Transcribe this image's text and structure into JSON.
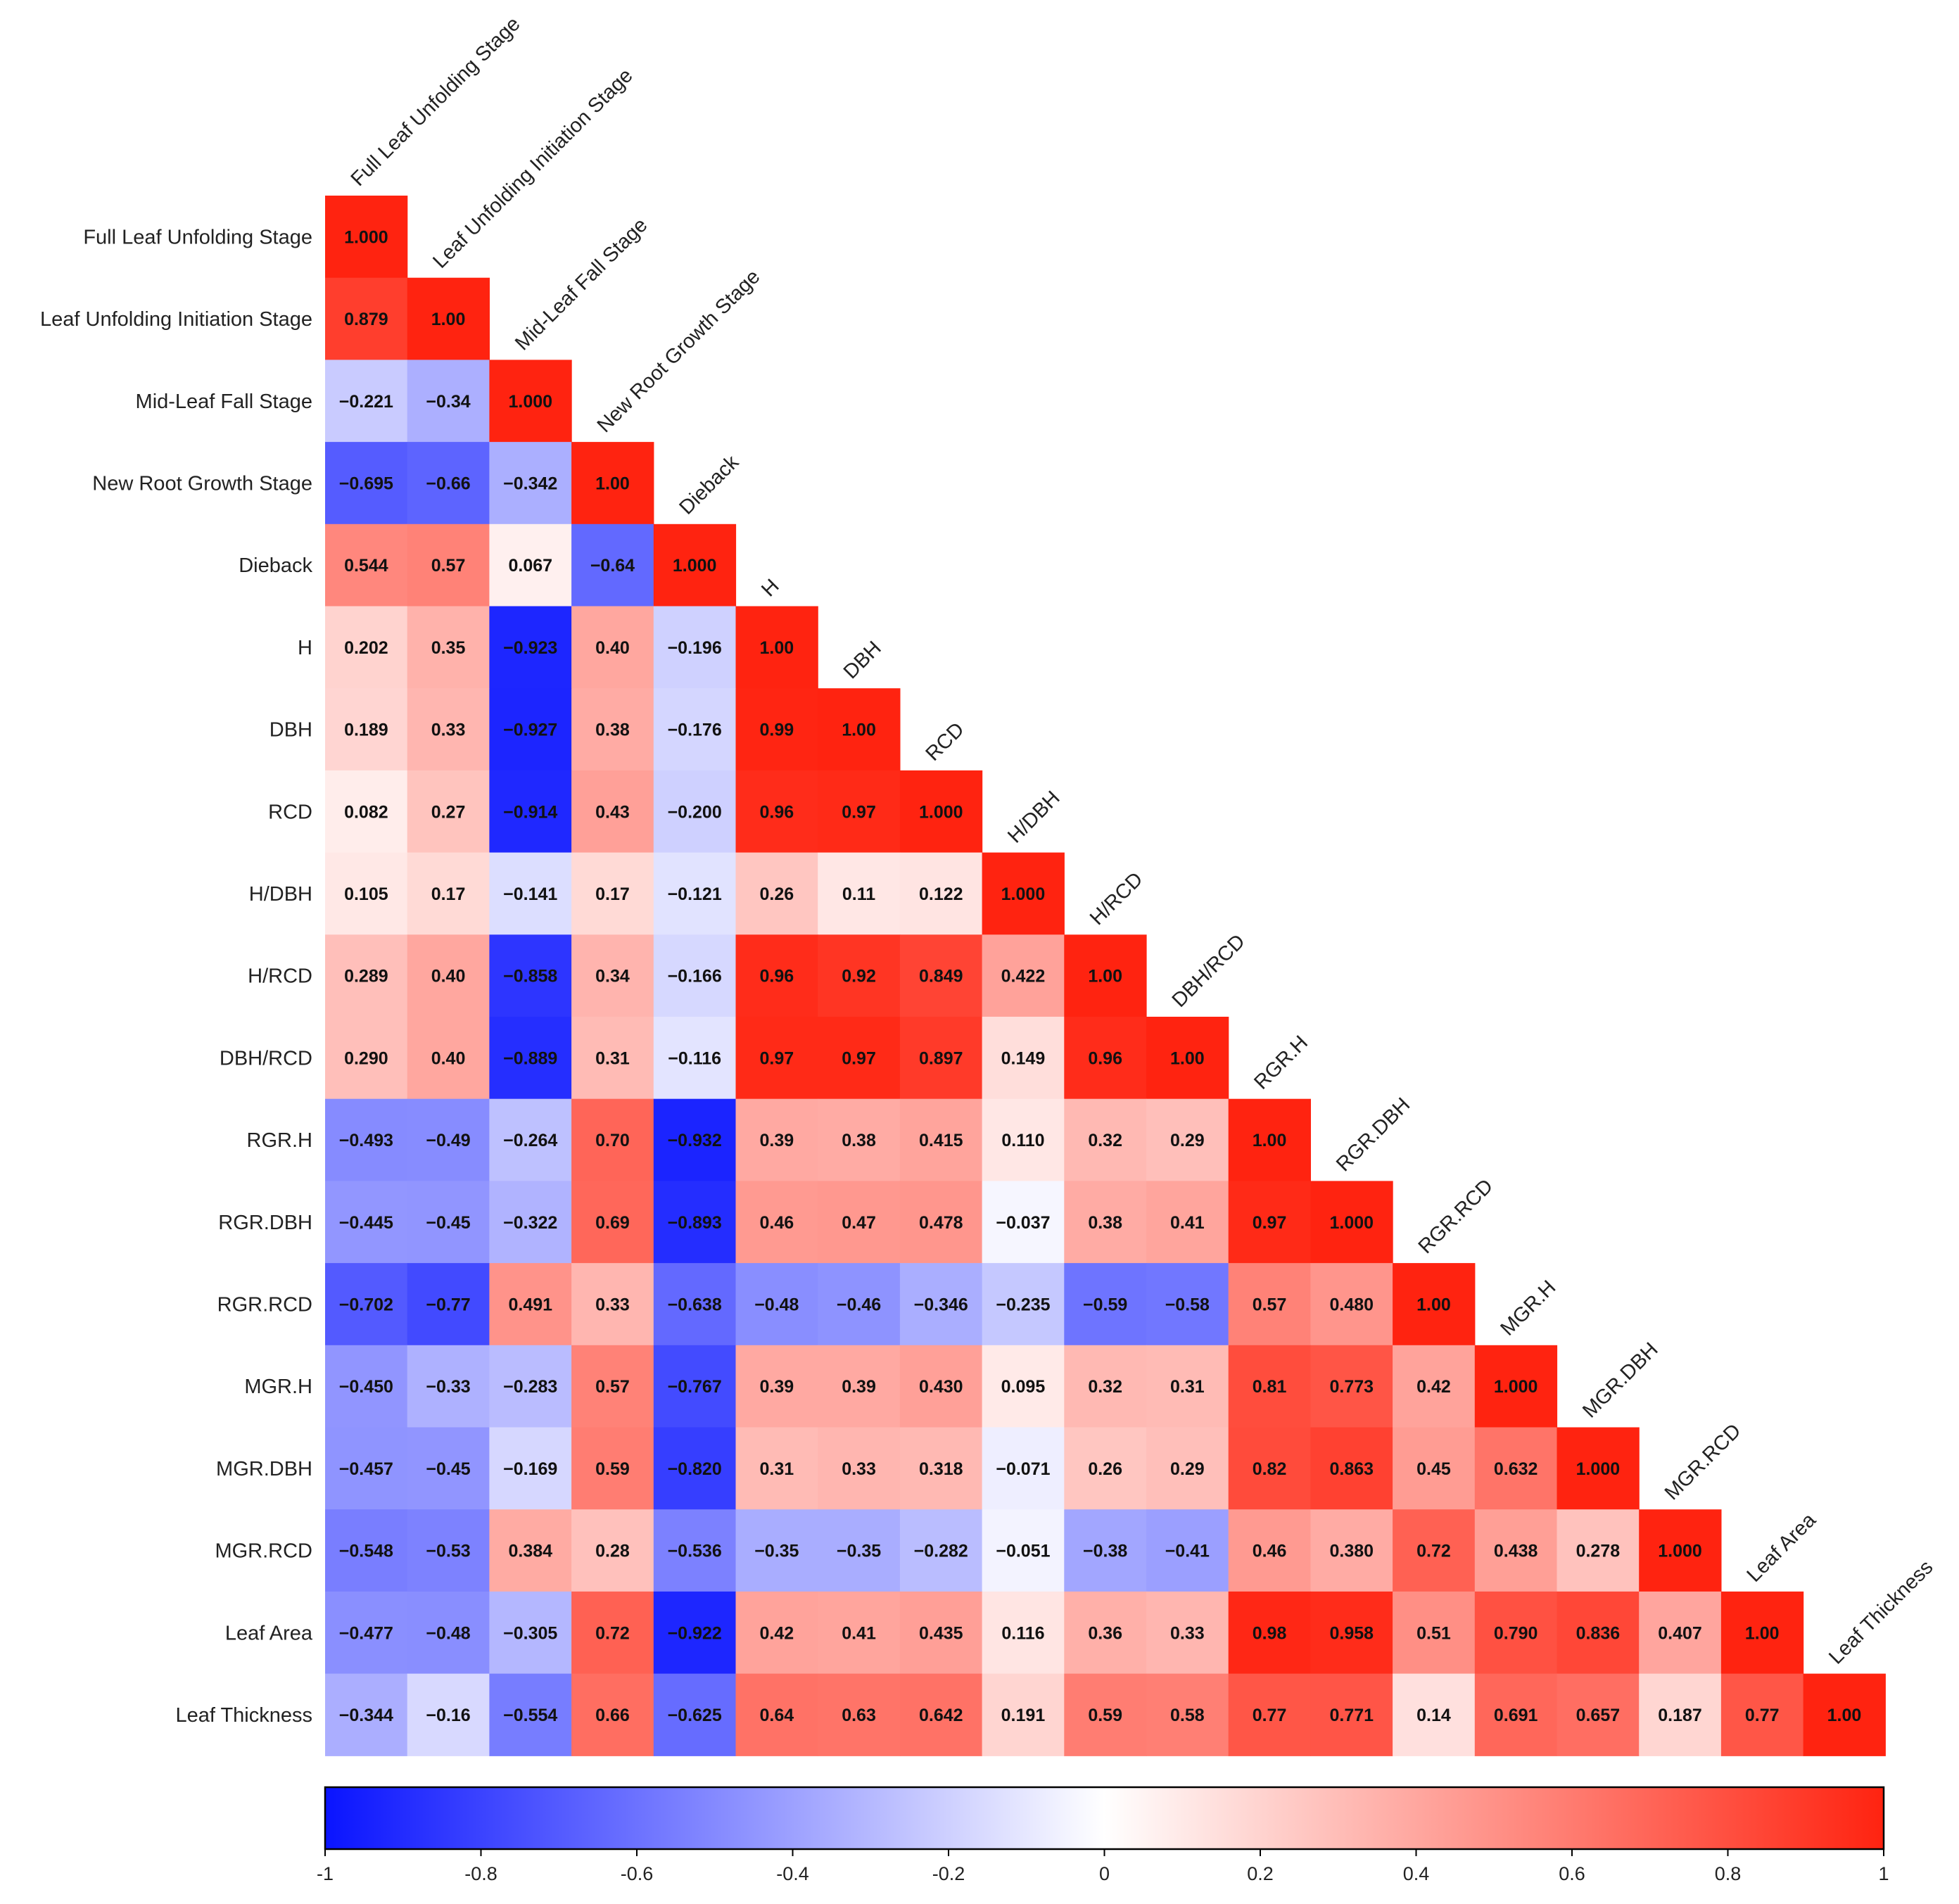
{
  "chart_data": {
    "type": "heatmap",
    "variables": [
      "Full Leaf Unfolding Stage",
      "Leaf Unfolding Initiation Stage",
      "Mid-Leaf Fall Stage",
      "New Root Growth Stage",
      "Dieback",
      "H",
      "DBH",
      "RCD",
      "H/DBH",
      "H/RCD",
      "DBH/RCD",
      "RGR.H",
      "RGR.DBH",
      "RGR.RCD",
      "MGR.H",
      "MGR.DBH",
      "MGR.RCD",
      "Leaf Area",
      "Leaf Thickness"
    ],
    "matrix": [
      [
        "1.000"
      ],
      [
        "0.879",
        "1.00"
      ],
      [
        "−0.221",
        "−0.34",
        "1.000"
      ],
      [
        "−0.695",
        "−0.66",
        "−0.342",
        "1.00"
      ],
      [
        "0.544",
        "0.57",
        "0.067",
        "−0.64",
        "1.000"
      ],
      [
        "0.202",
        "0.35",
        "−0.923",
        "0.40",
        "−0.196",
        "1.00"
      ],
      [
        "0.189",
        "0.33",
        "−0.927",
        "0.38",
        "−0.176",
        "0.99",
        "1.00"
      ],
      [
        "0.082",
        "0.27",
        "−0.914",
        "0.43",
        "−0.200",
        "0.96",
        "0.97",
        "1.000"
      ],
      [
        "0.105",
        "0.17",
        "−0.141",
        "0.17",
        "−0.121",
        "0.26",
        "0.11",
        "0.122",
        "1.000"
      ],
      [
        "0.289",
        "0.40",
        "−0.858",
        "0.34",
        "−0.166",
        "0.96",
        "0.92",
        "0.849",
        "0.422",
        "1.00"
      ],
      [
        "0.290",
        "0.40",
        "−0.889",
        "0.31",
        "−0.116",
        "0.97",
        "0.97",
        "0.897",
        "0.149",
        "0.96",
        "1.00"
      ],
      [
        "−0.493",
        "−0.49",
        "−0.264",
        "0.70",
        "−0.932",
        "0.39",
        "0.38",
        "0.415",
        "0.110",
        "0.32",
        "0.29",
        "1.00"
      ],
      [
        "−0.445",
        "−0.45",
        "−0.322",
        "0.69",
        "−0.893",
        "0.46",
        "0.47",
        "0.478",
        "−0.037",
        "0.38",
        "0.41",
        "0.97",
        "1.000"
      ],
      [
        "−0.702",
        "−0.77",
        "0.491",
        "0.33",
        "−0.638",
        "−0.48",
        "−0.46",
        "−0.346",
        "−0.235",
        "−0.59",
        "−0.58",
        "0.57",
        "0.480",
        "1.00"
      ],
      [
        "−0.450",
        "−0.33",
        "−0.283",
        "0.57",
        "−0.767",
        "0.39",
        "0.39",
        "0.430",
        "0.095",
        "0.32",
        "0.31",
        "0.81",
        "0.773",
        "0.42",
        "1.000"
      ],
      [
        "−0.457",
        "−0.45",
        "−0.169",
        "0.59",
        "−0.820",
        "0.31",
        "0.33",
        "0.318",
        "−0.071",
        "0.26",
        "0.29",
        "0.82",
        "0.863",
        "0.45",
        "0.632",
        "1.000"
      ],
      [
        "−0.548",
        "−0.53",
        "0.384",
        "0.28",
        "−0.536",
        "−0.35",
        "−0.35",
        "−0.282",
        "−0.051",
        "−0.38",
        "−0.41",
        "0.46",
        "0.380",
        "0.72",
        "0.438",
        "0.278",
        "1.000"
      ],
      [
        "−0.477",
        "−0.48",
        "−0.305",
        "0.72",
        "−0.922",
        "0.42",
        "0.41",
        "0.435",
        "0.116",
        "0.36",
        "0.33",
        "0.98",
        "0.958",
        "0.51",
        "0.790",
        "0.836",
        "0.407",
        "1.00"
      ],
      [
        "−0.344",
        "−0.16",
        "−0.554",
        "0.66",
        "−0.625",
        "0.64",
        "0.63",
        "0.642",
        "0.191",
        "0.59",
        "0.58",
        "0.77",
        "0.771",
        "0.14",
        "0.691",
        "0.657",
        "0.187",
        "0.77",
        "1.00"
      ]
    ],
    "colorbar": {
      "range": [
        -1,
        1
      ],
      "ticks": [
        "-1",
        "-0.8",
        "-0.6",
        "-0.4",
        "-0.2",
        "0",
        "0.2",
        "0.4",
        "0.6",
        "0.8",
        "1"
      ],
      "low_color": "#0a14ff",
      "mid_color": "#ffffff",
      "high_color": "#ff2310"
    }
  }
}
